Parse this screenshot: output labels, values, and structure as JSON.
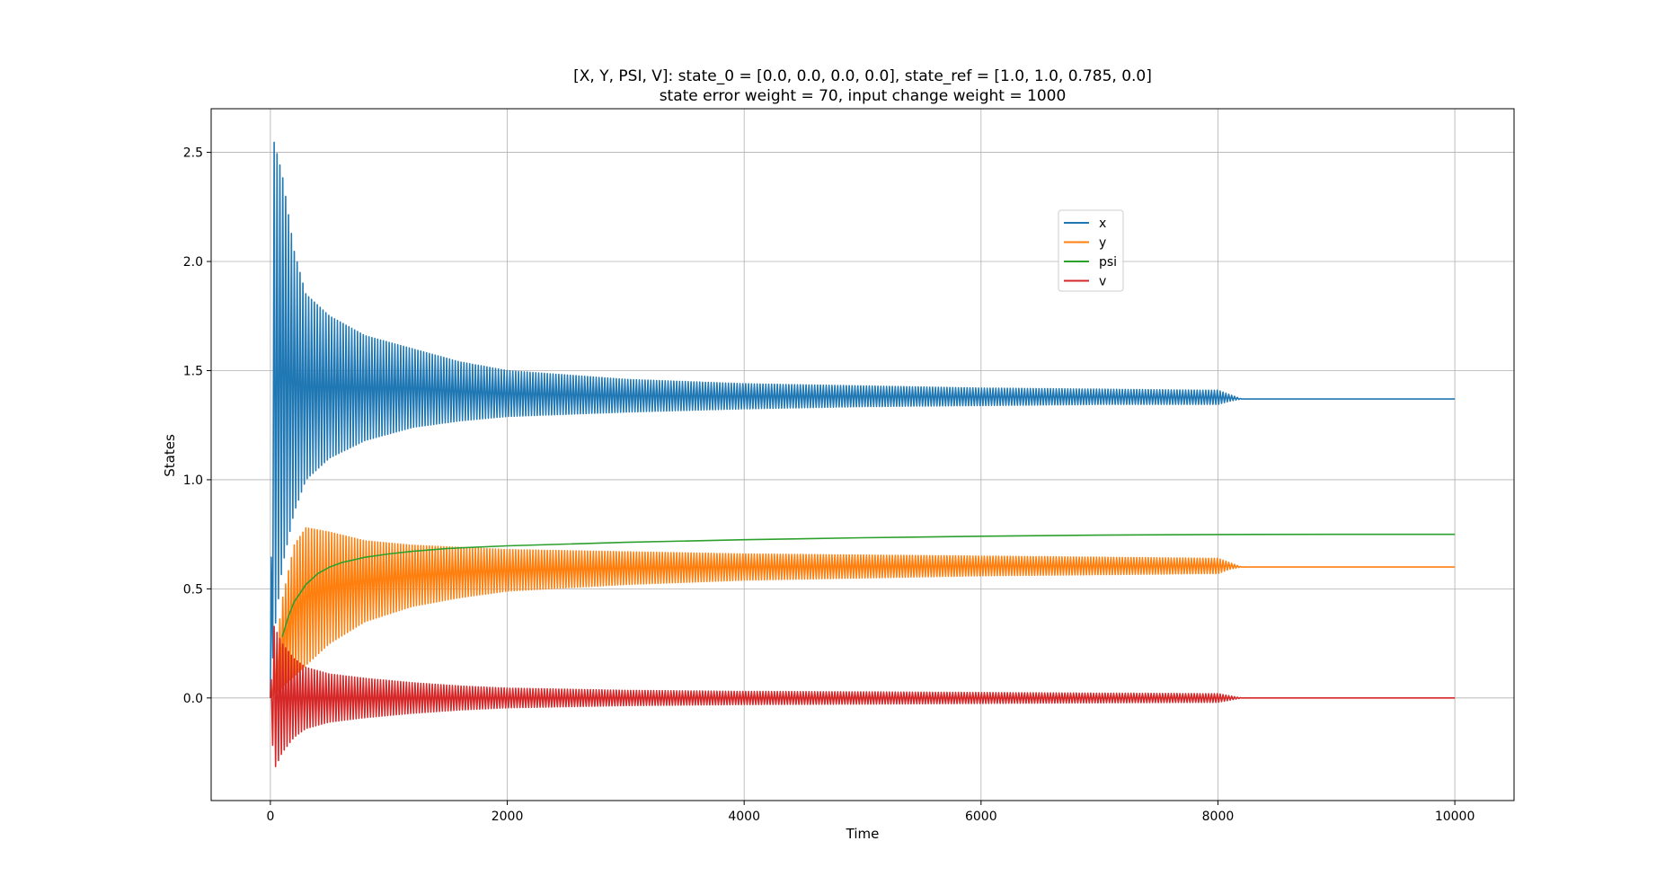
{
  "chart_data": {
    "type": "line",
    "title": "[X, Y, PSI, V]: state_0 = [0.0, 0.0, 0.0, 0.0], state_ref = [1.0, 1.0, 0.785, 0.0]",
    "subtitle": "state error weight = 70, input change weight = 1000",
    "xlabel": "Time",
    "ylabel": "States",
    "xlim": [
      -500,
      10500
    ],
    "ylim": [
      -0.47,
      2.7
    ],
    "xticks": [
      0,
      2000,
      4000,
      6000,
      8000,
      10000
    ],
    "xtick_labels": [
      "0",
      "2000",
      "4000",
      "6000",
      "8000",
      "10000"
    ],
    "yticks": [
      0.0,
      0.5,
      1.0,
      1.5,
      2.0,
      2.5
    ],
    "ytick_labels": [
      "0.0",
      "0.5",
      "1.0",
      "1.5",
      "2.0",
      "2.5"
    ],
    "grid": true,
    "legend_position": "upper-right-inside",
    "series": [
      {
        "name": "x",
        "color": "#1f77b4",
        "final": 1.37,
        "envelope_x": [
          0,
          30,
          100,
          200,
          300,
          500,
          800,
          1200,
          1600,
          2000,
          3000,
          4000,
          5000,
          6000,
          7000,
          7900,
          8000,
          8100,
          8200,
          10000
        ],
        "envelope_upper": [
          0.0,
          2.55,
          2.4,
          2.05,
          1.85,
          1.75,
          1.66,
          1.6,
          1.54,
          1.5,
          1.46,
          1.44,
          1.43,
          1.42,
          1.415,
          1.41,
          1.41,
          1.39,
          1.37,
          1.37
        ],
        "envelope_lower": [
          0.0,
          0.28,
          0.6,
          0.85,
          1.0,
          1.1,
          1.18,
          1.24,
          1.27,
          1.29,
          1.31,
          1.325,
          1.335,
          1.34,
          1.345,
          1.345,
          1.345,
          1.36,
          1.37,
          1.37
        ]
      },
      {
        "name": "y",
        "color": "#ff7f0e",
        "final": 0.6,
        "envelope_x": [
          0,
          100,
          200,
          300,
          500,
          800,
          1200,
          1600,
          2000,
          3000,
          4000,
          5000,
          6000,
          7000,
          7900,
          8000,
          8100,
          8200,
          10000
        ],
        "envelope_upper": [
          0.0,
          0.45,
          0.7,
          0.78,
          0.76,
          0.72,
          0.7,
          0.69,
          0.68,
          0.67,
          0.66,
          0.655,
          0.65,
          0.645,
          0.64,
          0.64,
          0.62,
          0.6,
          0.6
        ],
        "envelope_lower": [
          0.0,
          0.05,
          0.1,
          0.15,
          0.25,
          0.35,
          0.42,
          0.46,
          0.49,
          0.52,
          0.54,
          0.55,
          0.56,
          0.565,
          0.57,
          0.57,
          0.59,
          0.6,
          0.6
        ]
      },
      {
        "name": "psi",
        "color": "#2ca02c",
        "x": [
          100,
          150,
          200,
          300,
          400,
          500,
          600,
          800,
          1000,
          1200,
          1500,
          2000,
          3000,
          4000,
          5000,
          6000,
          7000,
          8000,
          9000,
          10000
        ],
        "y": [
          0.28,
          0.37,
          0.44,
          0.52,
          0.57,
          0.6,
          0.62,
          0.645,
          0.66,
          0.672,
          0.685,
          0.697,
          0.713,
          0.725,
          0.734,
          0.741,
          0.746,
          0.749,
          0.75,
          0.75
        ]
      },
      {
        "name": "v",
        "color": "#d62728",
        "final": 0.0,
        "envelope_x": [
          0,
          30,
          100,
          200,
          300,
          500,
          800,
          1200,
          1600,
          2000,
          3000,
          4000,
          5000,
          6000,
          7000,
          7900,
          8000,
          8100,
          8200,
          10000
        ],
        "envelope_upper": [
          0.0,
          0.33,
          0.25,
          0.18,
          0.14,
          0.11,
          0.09,
          0.07,
          0.055,
          0.045,
          0.035,
          0.03,
          0.028,
          0.025,
          0.022,
          0.02,
          0.02,
          0.01,
          0.0,
          0.0
        ],
        "envelope_lower": [
          0.0,
          -0.33,
          -0.25,
          -0.18,
          -0.14,
          -0.11,
          -0.09,
          -0.07,
          -0.055,
          -0.045,
          -0.035,
          -0.03,
          -0.028,
          -0.025,
          -0.022,
          -0.02,
          -0.02,
          -0.01,
          0.0,
          0.0
        ]
      }
    ]
  }
}
